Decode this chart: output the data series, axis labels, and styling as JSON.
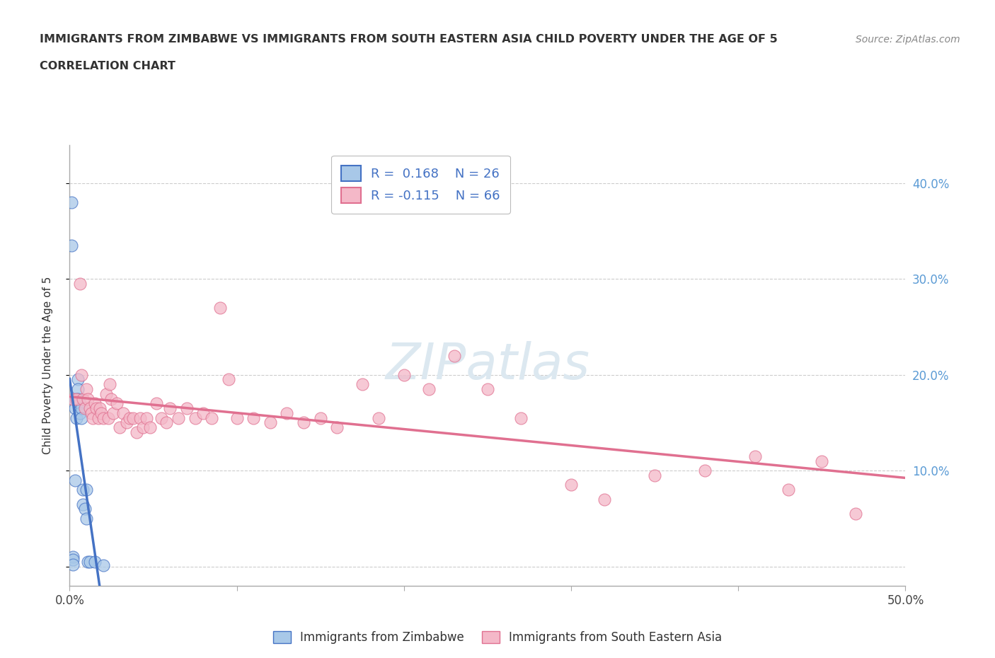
{
  "title_line1": "IMMIGRANTS FROM ZIMBABWE VS IMMIGRANTS FROM SOUTH EASTERN ASIA CHILD POVERTY UNDER THE AGE OF 5",
  "title_line2": "CORRELATION CHART",
  "source": "Source: ZipAtlas.com",
  "ylabel": "Child Poverty Under the Age of 5",
  "xlim": [
    0,
    0.5
  ],
  "ylim": [
    -0.02,
    0.44
  ],
  "r_zimbabwe": 0.168,
  "n_zimbabwe": 26,
  "r_sea": -0.115,
  "n_sea": 66,
  "color_zimbabwe": "#a8c8e8",
  "color_zimbabwe_line": "#4472c4",
  "color_sea": "#f4b8c8",
  "color_sea_line": "#e07090",
  "background_color": "#ffffff",
  "grid_color": "#cccccc",
  "zimbabwe_x": [
    0.001,
    0.001,
    0.002,
    0.002,
    0.002,
    0.003,
    0.003,
    0.003,
    0.004,
    0.004,
    0.005,
    0.005,
    0.005,
    0.006,
    0.006,
    0.007,
    0.007,
    0.008,
    0.008,
    0.009,
    0.01,
    0.01,
    0.011,
    0.012,
    0.015,
    0.02
  ],
  "zimbabwe_y": [
    0.38,
    0.335,
    0.01,
    0.007,
    0.002,
    0.175,
    0.165,
    0.09,
    0.175,
    0.155,
    0.195,
    0.185,
    0.175,
    0.17,
    0.16,
    0.165,
    0.155,
    0.08,
    0.065,
    0.06,
    0.08,
    0.05,
    0.005,
    0.005,
    0.005,
    0.001
  ],
  "sea_x": [
    0.002,
    0.004,
    0.006,
    0.007,
    0.008,
    0.009,
    0.01,
    0.011,
    0.012,
    0.013,
    0.014,
    0.015,
    0.016,
    0.017,
    0.018,
    0.019,
    0.02,
    0.022,
    0.023,
    0.024,
    0.025,
    0.026,
    0.028,
    0.03,
    0.032,
    0.034,
    0.036,
    0.038,
    0.04,
    0.042,
    0.044,
    0.046,
    0.048,
    0.052,
    0.055,
    0.058,
    0.06,
    0.065,
    0.07,
    0.075,
    0.08,
    0.085,
    0.09,
    0.095,
    0.1,
    0.11,
    0.12,
    0.13,
    0.14,
    0.15,
    0.16,
    0.175,
    0.185,
    0.2,
    0.215,
    0.23,
    0.25,
    0.27,
    0.3,
    0.32,
    0.35,
    0.38,
    0.41,
    0.43,
    0.45,
    0.47
  ],
  "sea_y": [
    0.175,
    0.175,
    0.295,
    0.2,
    0.175,
    0.165,
    0.185,
    0.175,
    0.165,
    0.16,
    0.155,
    0.17,
    0.165,
    0.155,
    0.165,
    0.16,
    0.155,
    0.18,
    0.155,
    0.19,
    0.175,
    0.16,
    0.17,
    0.145,
    0.16,
    0.15,
    0.155,
    0.155,
    0.14,
    0.155,
    0.145,
    0.155,
    0.145,
    0.17,
    0.155,
    0.15,
    0.165,
    0.155,
    0.165,
    0.155,
    0.16,
    0.155,
    0.27,
    0.195,
    0.155,
    0.155,
    0.15,
    0.16,
    0.15,
    0.155,
    0.145,
    0.19,
    0.155,
    0.2,
    0.185,
    0.22,
    0.185,
    0.155,
    0.085,
    0.07,
    0.095,
    0.1,
    0.115,
    0.08,
    0.11,
    0.055
  ],
  "watermark": "ZIPatlas",
  "watermark_color": "#dce8f0"
}
